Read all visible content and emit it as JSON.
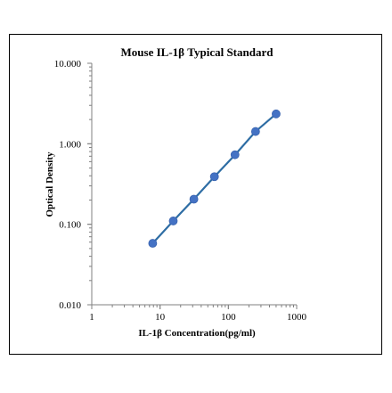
{
  "chart_data": {
    "type": "scatter",
    "title": "Mouse IL-1β Typical Standard",
    "xlabel": "IL-1β Concentration(pg/ml)",
    "ylabel": "Optical Density",
    "x_scale": "log",
    "y_scale": "log",
    "xlim": [
      1,
      1000
    ],
    "ylim": [
      0.01,
      10
    ],
    "x_ticks": [
      "1",
      "10",
      "100",
      "1000"
    ],
    "y_ticks": [
      "0.010",
      "0.100",
      "1.000",
      "10.000"
    ],
    "grid": false,
    "series": [
      {
        "x": [
          7.8,
          15.6,
          31.25,
          62.5,
          125,
          250,
          500
        ],
        "y": [
          0.058,
          0.11,
          0.205,
          0.39,
          0.73,
          1.42,
          2.35
        ]
      }
    ],
    "colors": {
      "series": "#2E6DA4",
      "marker": "#4472C4"
    }
  }
}
